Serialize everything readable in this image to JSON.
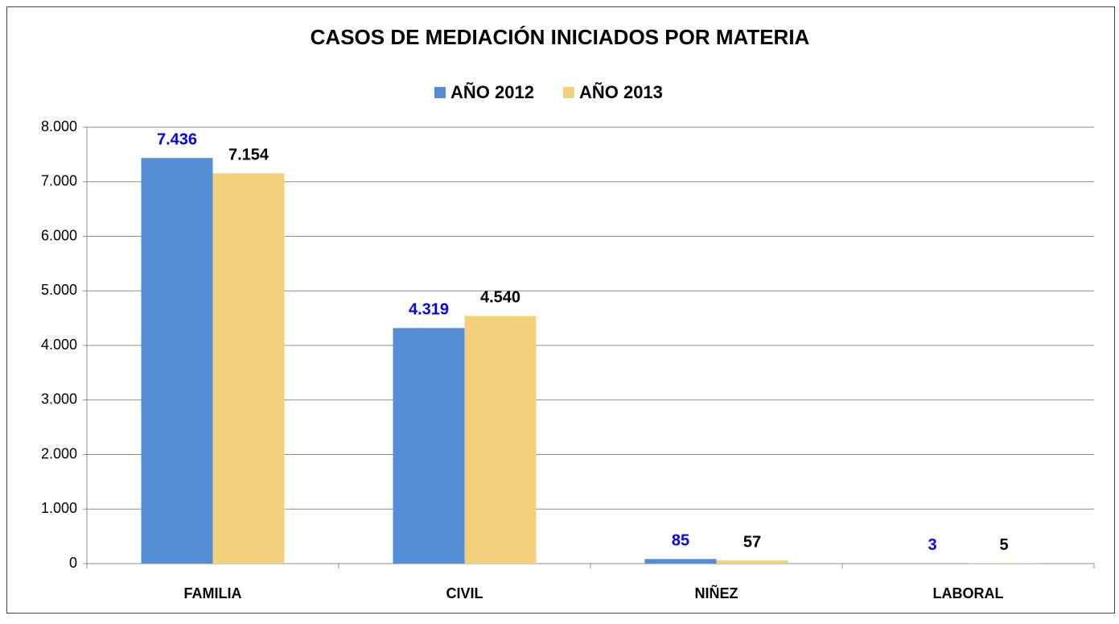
{
  "chart_data": {
    "type": "bar",
    "title": "CASOS DE MEDIACIÓN INICIADOS POR MATERIA",
    "categories": [
      "FAMILIA",
      "CIVIL",
      "NIÑEZ",
      "LABORAL"
    ],
    "series": [
      {
        "name": "AÑO 2012",
        "color": "#558ed5",
        "label_color": "#0000ff",
        "values": [
          7436,
          4319,
          85,
          3
        ],
        "value_labels": [
          "7.436",
          "4.319",
          "85",
          "3"
        ]
      },
      {
        "name": "AÑO 2013",
        "color": "#f3d07b",
        "label_color": "#000000",
        "values": [
          7154,
          4540,
          57,
          5
        ],
        "value_labels": [
          "7.154",
          "4.540",
          "57",
          "5"
        ]
      }
    ],
    "ylim": [
      0,
      8000
    ],
    "yticks": [
      0,
      {
        "value": 1000,
        "label": "1.000"
      },
      {
        "value": 2000,
        "label": "2.000"
      },
      {
        "value": 3000,
        "label": "3.000"
      },
      {
        "value": 4000,
        "label": "4.000"
      },
      {
        "value": 5000,
        "label": "5.000"
      },
      {
        "value": 6000,
        "label": "6.000"
      },
      {
        "value": 7000,
        "label": "7.000"
      },
      {
        "value": 8000,
        "label": "8.000"
      }
    ],
    "grid": true,
    "legend": "top"
  }
}
